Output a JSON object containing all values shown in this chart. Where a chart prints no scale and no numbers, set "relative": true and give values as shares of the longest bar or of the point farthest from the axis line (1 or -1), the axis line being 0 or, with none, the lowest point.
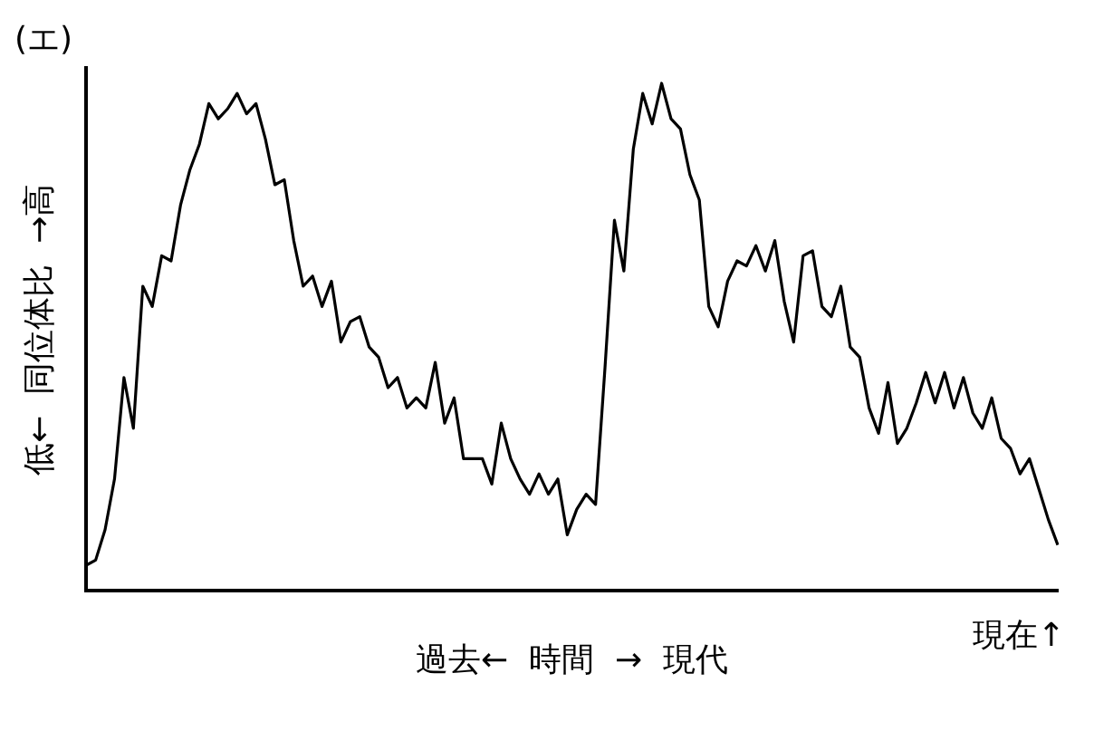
{
  "chart_data": {
    "type": "line",
    "title": "(エ)",
    "xlabel": "過去←  時間  →  現代",
    "ylabel": "低←  同位体比  →高",
    "annotations": [
      "現在↑"
    ],
    "relative": true,
    "grid": false,
    "legend": false,
    "marker": "none",
    "line_style": "solid",
    "categories": [
      null,
      null,
      null,
      null,
      null,
      null,
      null,
      null,
      null,
      null,
      null,
      null,
      null,
      null,
      null,
      null,
      null,
      null,
      null,
      null,
      null,
      null,
      null,
      null,
      null,
      null,
      null,
      null,
      null,
      null,
      null,
      null,
      null,
      null,
      null,
      null,
      null,
      null,
      null,
      null,
      null,
      null,
      null,
      null,
      null,
      null,
      null,
      null,
      null,
      null,
      null,
      null,
      null,
      null,
      null,
      null,
      null,
      null,
      null,
      null,
      null,
      null,
      null,
      null,
      null,
      null,
      null,
      null,
      null,
      null,
      null,
      null,
      null,
      null,
      null,
      null,
      null,
      null,
      null,
      null,
      null,
      null,
      null,
      null,
      null,
      null,
      null,
      null,
      null,
      null,
      null,
      null,
      null,
      null,
      null,
      null,
      null,
      null,
      null,
      null,
      null,
      null,
      null,
      null
    ],
    "series": [
      {
        "color": "#000000",
        "values": [
          0.05,
          0.06,
          0.12,
          0.22,
          0.42,
          0.32,
          0.6,
          0.56,
          0.66,
          0.65,
          0.76,
          0.83,
          0.88,
          0.96,
          0.93,
          0.95,
          0.98,
          0.94,
          0.96,
          0.89,
          0.8,
          0.81,
          0.69,
          0.6,
          0.62,
          0.56,
          0.61,
          0.49,
          0.53,
          0.54,
          0.48,
          0.46,
          0.4,
          0.42,
          0.36,
          0.38,
          0.36,
          0.45,
          0.33,
          0.38,
          0.26,
          0.26,
          0.26,
          0.21,
          0.33,
          0.26,
          0.22,
          0.19,
          0.23,
          0.19,
          0.22,
          0.11,
          0.16,
          0.19,
          0.17,
          0.44,
          0.73,
          0.63,
          0.87,
          0.98,
          0.92,
          1,
          0.93,
          0.91,
          0.82,
          0.77,
          0.56,
          0.52,
          0.61,
          0.65,
          0.64,
          0.68,
          0.63,
          0.69,
          0.57,
          0.49,
          0.66,
          0.67,
          0.56,
          0.54,
          0.6,
          0.48,
          0.46,
          0.36,
          0.31,
          0.41,
          0.29,
          0.32,
          0.37,
          0.43,
          0.37,
          0.43,
          0.36,
          0.42,
          0.35,
          0.32,
          0.38,
          0.3,
          0.28,
          0.23,
          0.26,
          0.2,
          0.14,
          0.09
        ]
      }
    ]
  }
}
